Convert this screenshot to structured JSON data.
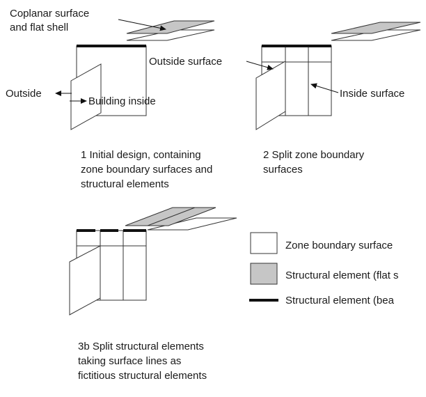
{
  "labels": {
    "coplanar_line1": "Coplanar surface",
    "coplanar_line2": "and flat shell",
    "outside": "Outside",
    "building_inside": "Building inside",
    "outside_surface": "Outside surface",
    "inside_surface": "Inside surface"
  },
  "captions": {
    "step1": [
      "1 Initial design, containing",
      "zone boundary surfaces and",
      "structural elements"
    ],
    "step2": [
      "2 Split zone boundary",
      "surfaces"
    ],
    "step3b": [
      "3b Split structural elements",
      "taking surface lines as",
      "fictitious structural elements"
    ]
  },
  "legend": {
    "zone_boundary": "Zone boundary surface",
    "structural_flat": "Structural element (flat s",
    "structural_beam": "Structural element (bea"
  },
  "colors": {
    "shell_fill": "#c6c6c6",
    "line": "#333333",
    "beam": "#111111"
  }
}
